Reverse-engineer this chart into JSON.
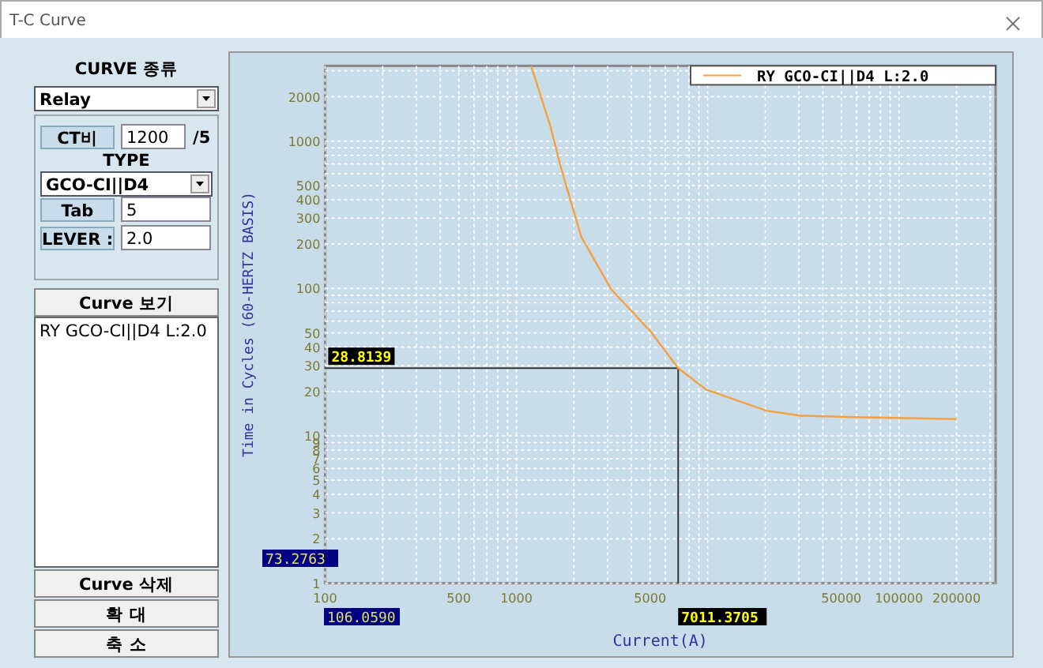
{
  "chart_data": [
    {
      "type": "other",
      "title": "T-C Curve",
      "annotations": [
        "CURVE 종류",
        "Relay",
        "CT비",
        "1200",
        "/5",
        "TYPE",
        "GCO-CI||D4",
        "Tab",
        "5",
        "LEVER :",
        "2.0",
        "Curve 보기",
        "RY GCO-CI||D4 L:2.0",
        "Curve 삭제",
        "확 대",
        "축 소"
      ]
    },
    {
      "type": "line",
      "xlabel": "Current(A)",
      "ylabel": "Time in Cycles (60-HERTZ BASIS)",
      "log": "xy",
      "grid": true,
      "legend": "top right",
      "marker": "none",
      "line_style": "solid",
      "xlim": [
        100,
        320000
      ],
      "ylim": [
        1,
        3240
      ],
      "xticks": [
        100,
        {
          "value": 200,
          "label": null
        },
        {
          "value": 300,
          "label": null
        },
        {
          "value": 400,
          "label": null
        },
        500,
        {
          "value": 600,
          "label": null
        },
        {
          "value": 700,
          "label": null
        },
        {
          "value": 800,
          "label": null
        },
        {
          "value": 900,
          "label": null
        },
        1000,
        {
          "value": 2000,
          "label": null
        },
        {
          "value": 3000,
          "label": null
        },
        {
          "value": 4000,
          "label": null
        },
        5000,
        {
          "value": 6000,
          "label": null
        },
        {
          "value": 7000,
          "label": null
        },
        {
          "value": 8000,
          "label": null
        },
        {
          "value": 9000,
          "label": null
        },
        {
          "value": 10000,
          "label": null
        },
        {
          "value": 20000,
          "label": null
        },
        {
          "value": 30000,
          "label": null
        },
        {
          "value": 40000,
          "label": null
        },
        50000,
        {
          "value": 60000,
          "label": null
        },
        {
          "value": 70000,
          "label": null
        },
        {
          "value": 80000,
          "label": null
        },
        {
          "value": 90000,
          "label": null
        },
        100000,
        200000,
        {
          "value": 300000,
          "label": null
        }
      ],
      "yticks": [
        1,
        2,
        3,
        4,
        5,
        6,
        7,
        8,
        9,
        10,
        20,
        30,
        40,
        50,
        {
          "value": 60,
          "label": null
        },
        {
          "value": 70,
          "label": null
        },
        {
          "value": 80,
          "label": null
        },
        {
          "value": 90,
          "label": null
        },
        100,
        200,
        300,
        400,
        500,
        {
          "value": 600,
          "label": null
        },
        {
          "value": 700,
          "label": null
        },
        {
          "value": 800,
          "label": null
        },
        {
          "value": 900,
          "label": null
        },
        1000,
        2000,
        {
          "value": 3000,
          "label": null
        }
      ],
      "ref_lines": [
        {
          "axis": "y",
          "value": 28.8139,
          "label": "28.8139",
          "color": "#333333"
        },
        {
          "axis": "x",
          "value": 7011.3705,
          "label": "7011.3705",
          "color": "#333333"
        }
      ],
      "annotations": [
        "73.2763",
        "106.0590"
      ],
      "series": [
        {
          "name": "RY GCO-CI||D4 L:2.0",
          "color": "#f4a040",
          "x": [
            1194,
            1507,
            1714,
            2183,
            3133,
            5035,
            7011,
            9820,
            20300,
            30700,
            57900,
            200000
          ],
          "values": [
            3240,
            1260,
            653,
            224,
            98.6,
            51,
            28.81,
            20.6,
            14.8,
            13.7,
            13.4,
            13.0
          ]
        }
      ]
    }
  ]
}
